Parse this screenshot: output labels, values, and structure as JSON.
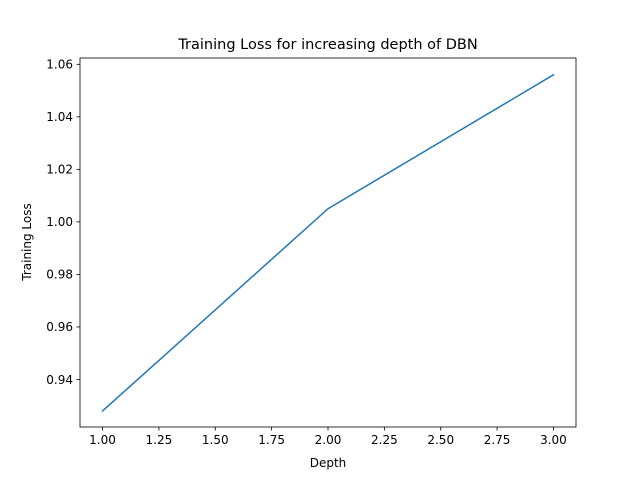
{
  "chart_data": {
    "type": "line",
    "title": "Training Loss for increasing depth of DBN",
    "xlabel": "Depth",
    "ylabel": "Training Loss",
    "xlim": [
      0.9,
      3.1
    ],
    "ylim": [
      0.9219,
      1.0624
    ],
    "x_ticks": [
      1.0,
      1.25,
      1.5,
      1.75,
      2.0,
      2.25,
      2.5,
      2.75,
      3.0
    ],
    "x_tick_labels": [
      "1.00",
      "1.25",
      "1.50",
      "1.75",
      "2.00",
      "2.25",
      "2.50",
      "2.75",
      "3.00"
    ],
    "y_ticks": [
      0.94,
      0.96,
      0.98,
      1.0,
      1.02,
      1.04,
      1.06
    ],
    "y_tick_labels": [
      "0.94",
      "0.96",
      "0.98",
      "1.00",
      "1.02",
      "1.04",
      "1.06"
    ],
    "grid": false,
    "legend": "none",
    "series": [
      {
        "x": [
          1,
          2,
          3
        ],
        "values": [
          0.928,
          1.005,
          1.056
        ],
        "color": "#1f77b4"
      }
    ]
  }
}
